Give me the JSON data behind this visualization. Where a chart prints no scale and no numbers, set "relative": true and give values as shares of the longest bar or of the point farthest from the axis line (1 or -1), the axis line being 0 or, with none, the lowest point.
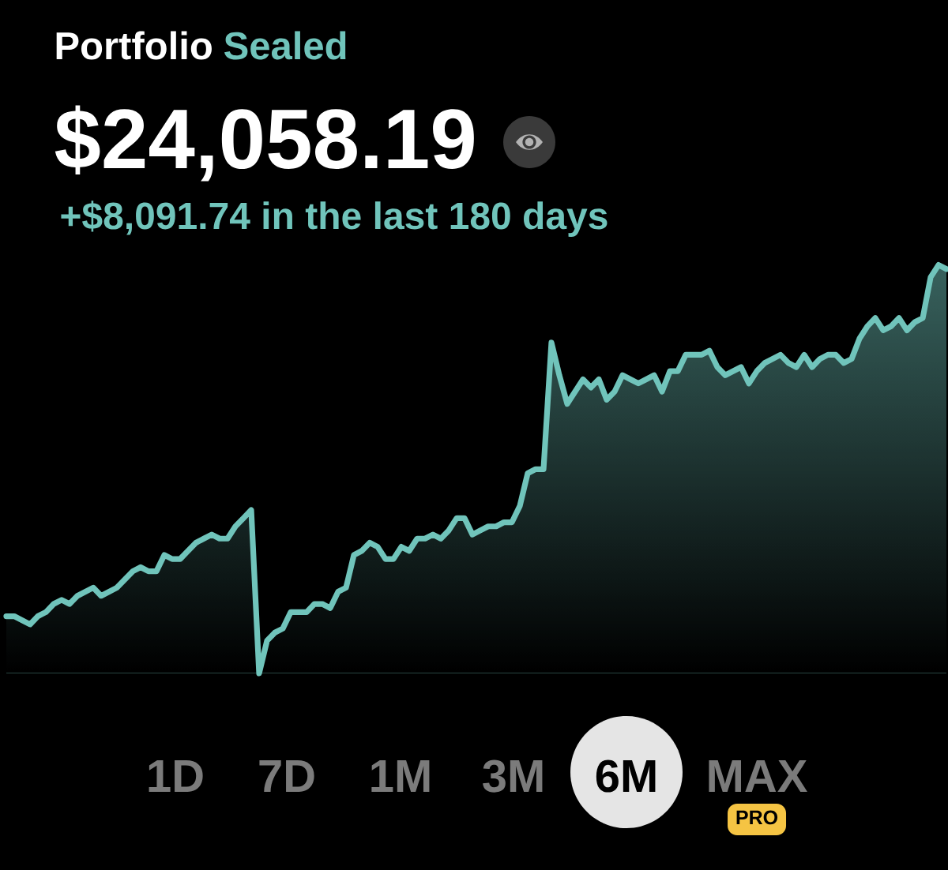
{
  "chart_data": {
    "type": "area",
    "title": "Portfolio",
    "subtitle": "Sealed",
    "annotations": [
      "$24,058.19",
      "+$8,091.74 in the last 180 days",
      "1D",
      "7D",
      "1M",
      "3M",
      "6M",
      "MAX",
      "PRO"
    ],
    "relative": true,
    "color": "#70c4bb",
    "categories": [
      null,
      null,
      null,
      null,
      null,
      null,
      null,
      null,
      null,
      null,
      null,
      null,
      null,
      null,
      null,
      null,
      null,
      null,
      null,
      null,
      null,
      null,
      null,
      null,
      null,
      null,
      null,
      null,
      null,
      null,
      null,
      null,
      null,
      null,
      null,
      null,
      null,
      null,
      null,
      null,
      null,
      null,
      null,
      null,
      null,
      null,
      null,
      null,
      null,
      null,
      null,
      null,
      null,
      null,
      null,
      null,
      null,
      null,
      null,
      null,
      null,
      null,
      null,
      null,
      null,
      null,
      null,
      null,
      null,
      null,
      null,
      null,
      null,
      null,
      null,
      null,
      null,
      null,
      null,
      null,
      null,
      null,
      null,
      null,
      null,
      null,
      null,
      null,
      null,
      null,
      null,
      null,
      null,
      null,
      null,
      null,
      null,
      null,
      null,
      null,
      null,
      null,
      null,
      null,
      null,
      null,
      null,
      null,
      null,
      null,
      null,
      null,
      null,
      null,
      null,
      null,
      null,
      null,
      null,
      null
    ],
    "values": [
      0.14,
      0.14,
      0.13,
      0.12,
      0.14,
      0.15,
      0.17,
      0.18,
      0.17,
      0.19,
      0.2,
      0.21,
      0.19,
      0.2,
      0.21,
      0.23,
      0.25,
      0.26,
      0.25,
      0.25,
      0.29,
      0.28,
      0.28,
      0.3,
      0.32,
      0.33,
      0.34,
      0.33,
      0.33,
      0.36,
      0.38,
      0.4,
      0,
      0.08,
      0.1,
      0.11,
      0.15,
      0.15,
      0.15,
      0.17,
      0.17,
      0.16,
      0.2,
      0.21,
      0.29,
      0.3,
      0.32,
      0.31,
      0.28,
      0.28,
      0.31,
      0.3,
      0.33,
      0.33,
      0.34,
      0.33,
      0.35,
      0.38,
      0.38,
      0.34,
      0.35,
      0.36,
      0.36,
      0.37,
      0.37,
      0.41,
      0.49,
      0.5,
      0.5,
      0.81,
      0.73,
      0.66,
      0.69,
      0.72,
      0.7,
      0.72,
      0.67,
      0.69,
      0.73,
      0.72,
      0.71,
      0.72,
      0.73,
      0.69,
      0.74,
      0.74,
      0.78,
      0.78,
      0.78,
      0.79,
      0.75,
      0.73,
      0.74,
      0.75,
      0.71,
      0.74,
      0.76,
      0.77,
      0.78,
      0.76,
      0.75,
      0.78,
      0.75,
      0.77,
      0.78,
      0.78,
      0.76,
      0.77,
      0.82,
      0.85,
      0.87,
      0.84,
      0.85,
      0.87,
      0.84,
      0.86,
      0.87,
      0.97,
      1,
      0.99
    ]
  }
}
